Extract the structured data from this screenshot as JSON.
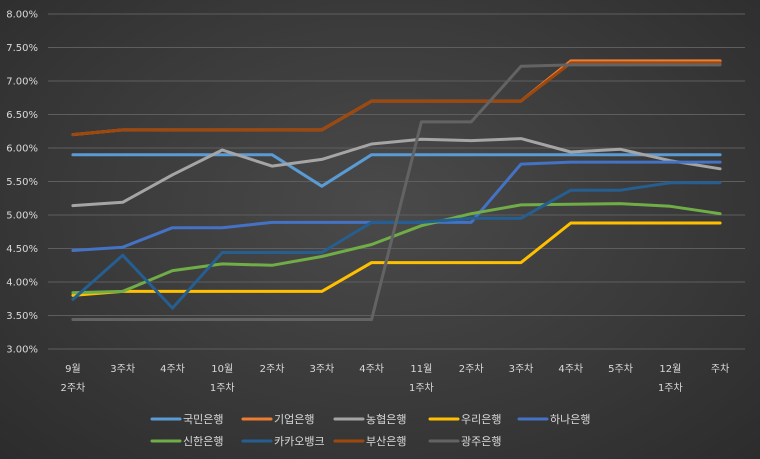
{
  "chart_data": {
    "type": "line",
    "title": "",
    "xlabel": "",
    "ylabel": "",
    "ylim": [
      3.0,
      8.0
    ],
    "y_tick_labels": [
      "3.00%",
      "3.50%",
      "4.00%",
      "4.50%",
      "5.00%",
      "5.50%",
      "6.00%",
      "6.50%",
      "7.00%",
      "7.50%",
      "8.00%"
    ],
    "categories": [
      [
        "9월",
        "2주차"
      ],
      [
        "3주차"
      ],
      [
        "4주차"
      ],
      [
        "10월",
        "1주차"
      ],
      [
        "2주차"
      ],
      [
        "3주차"
      ],
      [
        "4주차"
      ],
      [
        "11월",
        "1주차"
      ],
      [
        "2주차"
      ],
      [
        "3주차"
      ],
      [
        "4주차"
      ],
      [
        "5주차"
      ],
      [
        "12월",
        "1주차"
      ],
      [
        "주차"
      ]
    ],
    "grid": true,
    "legend_position": "bottom",
    "series": [
      {
        "name": "국민은행",
        "color": "#5b9bd5",
        "values": [
          5.9,
          5.9,
          5.9,
          5.9,
          5.9,
          5.43,
          5.9,
          5.9,
          5.9,
          5.9,
          5.9,
          5.9,
          5.9,
          5.9
        ]
      },
      {
        "name": "기업은행",
        "color": "#ed7d31",
        "values": [
          6.2,
          6.27,
          6.27,
          6.27,
          6.27,
          6.27,
          6.7,
          6.7,
          6.7,
          6.7,
          7.3,
          7.3,
          7.3,
          7.3
        ]
      },
      {
        "name": "농협은행",
        "color": "#a5a5a5",
        "values": [
          5.14,
          5.19,
          5.6,
          5.97,
          5.73,
          5.83,
          6.06,
          6.13,
          6.11,
          6.14,
          5.94,
          5.98,
          5.81,
          5.69
        ]
      },
      {
        "name": "우리은행",
        "color": "#ffc000",
        "values": [
          3.8,
          3.86,
          3.86,
          3.86,
          3.86,
          3.86,
          4.29,
          4.29,
          4.29,
          4.29,
          4.88,
          4.88,
          4.88,
          4.88
        ]
      },
      {
        "name": "하나은행",
        "color": "#4472c4",
        "values": [
          4.47,
          4.52,
          4.81,
          4.81,
          4.89,
          4.89,
          4.89,
          4.89,
          4.89,
          5.76,
          5.79,
          5.79,
          5.79,
          5.79
        ]
      },
      {
        "name": "신한은행",
        "color": "#70ad47",
        "values": [
          3.84,
          3.86,
          4.17,
          4.27,
          4.25,
          4.38,
          4.56,
          4.84,
          5.02,
          5.15,
          5.16,
          5.17,
          5.13,
          5.02
        ]
      },
      {
        "name": "카카오뱅크",
        "color": "#255e91",
        "values": [
          3.74,
          4.4,
          3.61,
          4.44,
          4.44,
          4.44,
          4.89,
          4.89,
          4.95,
          4.95,
          5.37,
          5.37,
          5.48,
          5.48
        ]
      },
      {
        "name": "부산은행",
        "color": "#9e480e",
        "values": [
          6.2,
          6.27,
          6.27,
          6.27,
          6.27,
          6.27,
          6.7,
          6.7,
          6.7,
          6.7,
          7.27,
          7.27,
          7.27,
          7.27
        ]
      },
      {
        "name": "광주은행",
        "color": "#636363",
        "values": [
          3.44,
          3.44,
          3.44,
          3.44,
          3.44,
          3.44,
          3.44,
          6.39,
          6.39,
          7.22,
          7.24,
          7.24,
          7.24,
          7.24
        ]
      }
    ]
  }
}
